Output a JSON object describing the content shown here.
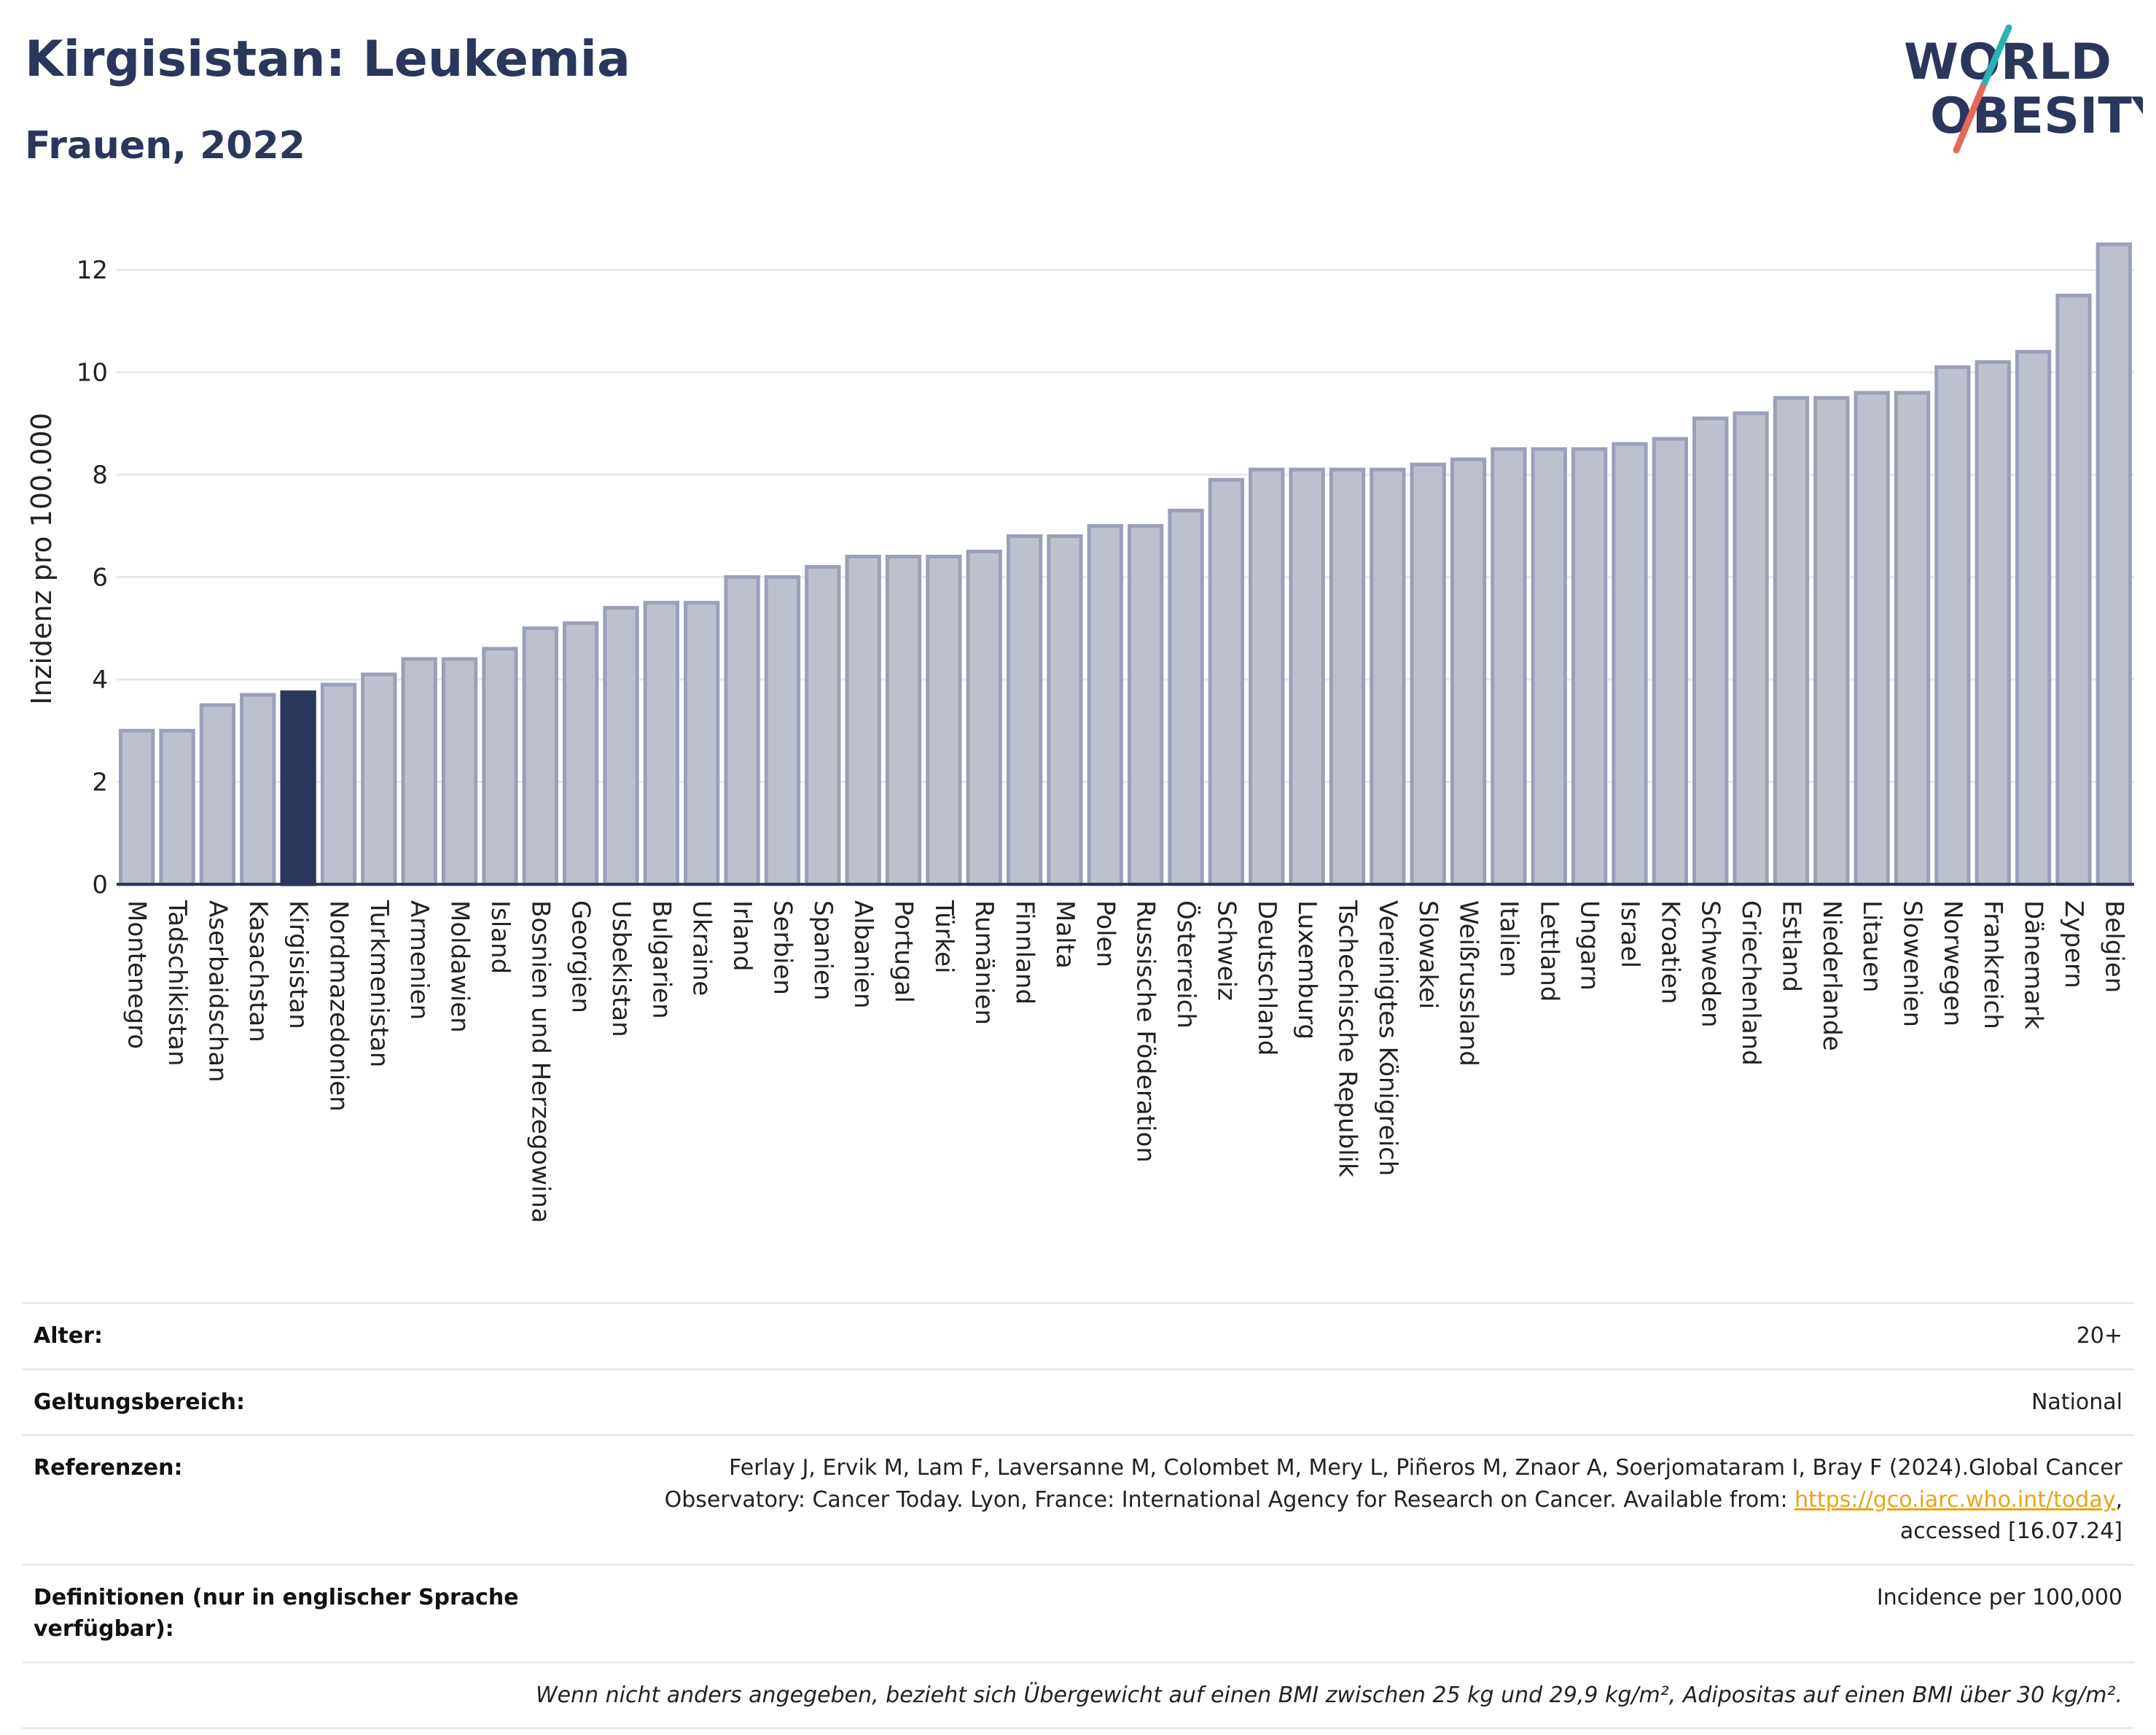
{
  "header": {
    "title": "Kirgisistan: Leukemia",
    "subtitle": "Frauen, 2022",
    "logo_line1": "WORLD",
    "logo_line2": "OBESITY"
  },
  "colors": {
    "bar": "#bdc1ce",
    "bar_stroke": "#9aa0b8",
    "highlight": "#2b365c",
    "grid": "#e6e8ee",
    "axis": "#2b365c"
  },
  "chart_data": {
    "type": "bar",
    "title": "Kirgisistan: Leukemia",
    "subtitle": "Frauen, 2022",
    "ylabel": "Inzidenz pro 100.000",
    "xlabel": "",
    "ylim": [
      0,
      13
    ],
    "yticks": [
      0,
      2,
      4,
      6,
      8,
      10,
      12
    ],
    "grid": true,
    "highlight": "Kirgisistan",
    "categories": [
      "Montenegro",
      "Tadschikistan",
      "Aserbaidschan",
      "Kasachstan",
      "Kirgisistan",
      "Nordmazedonien",
      "Turkmenistan",
      "Armenien",
      "Moldawien",
      "Island",
      "Bosnien und Herzegowina",
      "Georgien",
      "Usbekistan",
      "Bulgarien",
      "Ukraine",
      "Irland",
      "Serbien",
      "Spanien",
      "Albanien",
      "Portugal",
      "Türkei",
      "Rumänien",
      "Finnland",
      "Malta",
      "Polen",
      "Russische Föderation",
      "Österreich",
      "Schweiz",
      "Deutschland",
      "Luxemburg",
      "Tschechische Republik",
      "Vereinigtes Königreich",
      "Slowakei",
      "Weißrussland",
      "Italien",
      "Lettland",
      "Ungarn",
      "Israel",
      "Kroatien",
      "Schweden",
      "Griechenland",
      "Estland",
      "Niederlande",
      "Litauen",
      "Slowenien",
      "Norwegen",
      "Frankreich",
      "Dänemark",
      "Zypern",
      "Belgien"
    ],
    "values": [
      3.0,
      3.0,
      3.5,
      3.7,
      3.75,
      3.9,
      4.1,
      4.4,
      4.4,
      4.6,
      5.0,
      5.1,
      5.4,
      5.5,
      5.5,
      6.0,
      6.0,
      6.2,
      6.4,
      6.4,
      6.4,
      6.5,
      6.8,
      6.8,
      7.0,
      7.0,
      7.3,
      7.9,
      8.1,
      8.1,
      8.1,
      8.1,
      8.2,
      8.3,
      8.5,
      8.5,
      8.5,
      8.6,
      8.7,
      9.1,
      9.2,
      9.5,
      9.5,
      9.6,
      9.6,
      10.1,
      10.2,
      10.4,
      11.5,
      12.5
    ]
  },
  "info": {
    "age_label": "Alter:",
    "age_value": "20+",
    "scope_label": "Geltungsbereich:",
    "scope_value": "National",
    "ref_label": "Referenzen:",
    "ref_text_1": "Ferlay J, Ervik M, Lam F, Laversanne M, Colombet M, Mery L, Piñeros M, Znaor A, Soerjomataram I, Bray F (2024).Global Cancer",
    "ref_text_2": "Observatory: Cancer Today. Lyon, France: International Agency for Research on Cancer. Available from: ",
    "ref_link": "https://gco.iarc.who.int/today",
    "ref_text_3": ",",
    "ref_text_4": "accessed [16.07.24]",
    "def_label": "Definitionen (nur in englischer Sprache verfügbar):",
    "def_value": "Incidence per 100,000",
    "note": "Wenn nicht anders angegeben, bezieht sich Übergewicht auf einen BMI zwischen 25 kg und 29,9 kg/m², Adipositas auf einen BMI über 30 kg/m²."
  }
}
